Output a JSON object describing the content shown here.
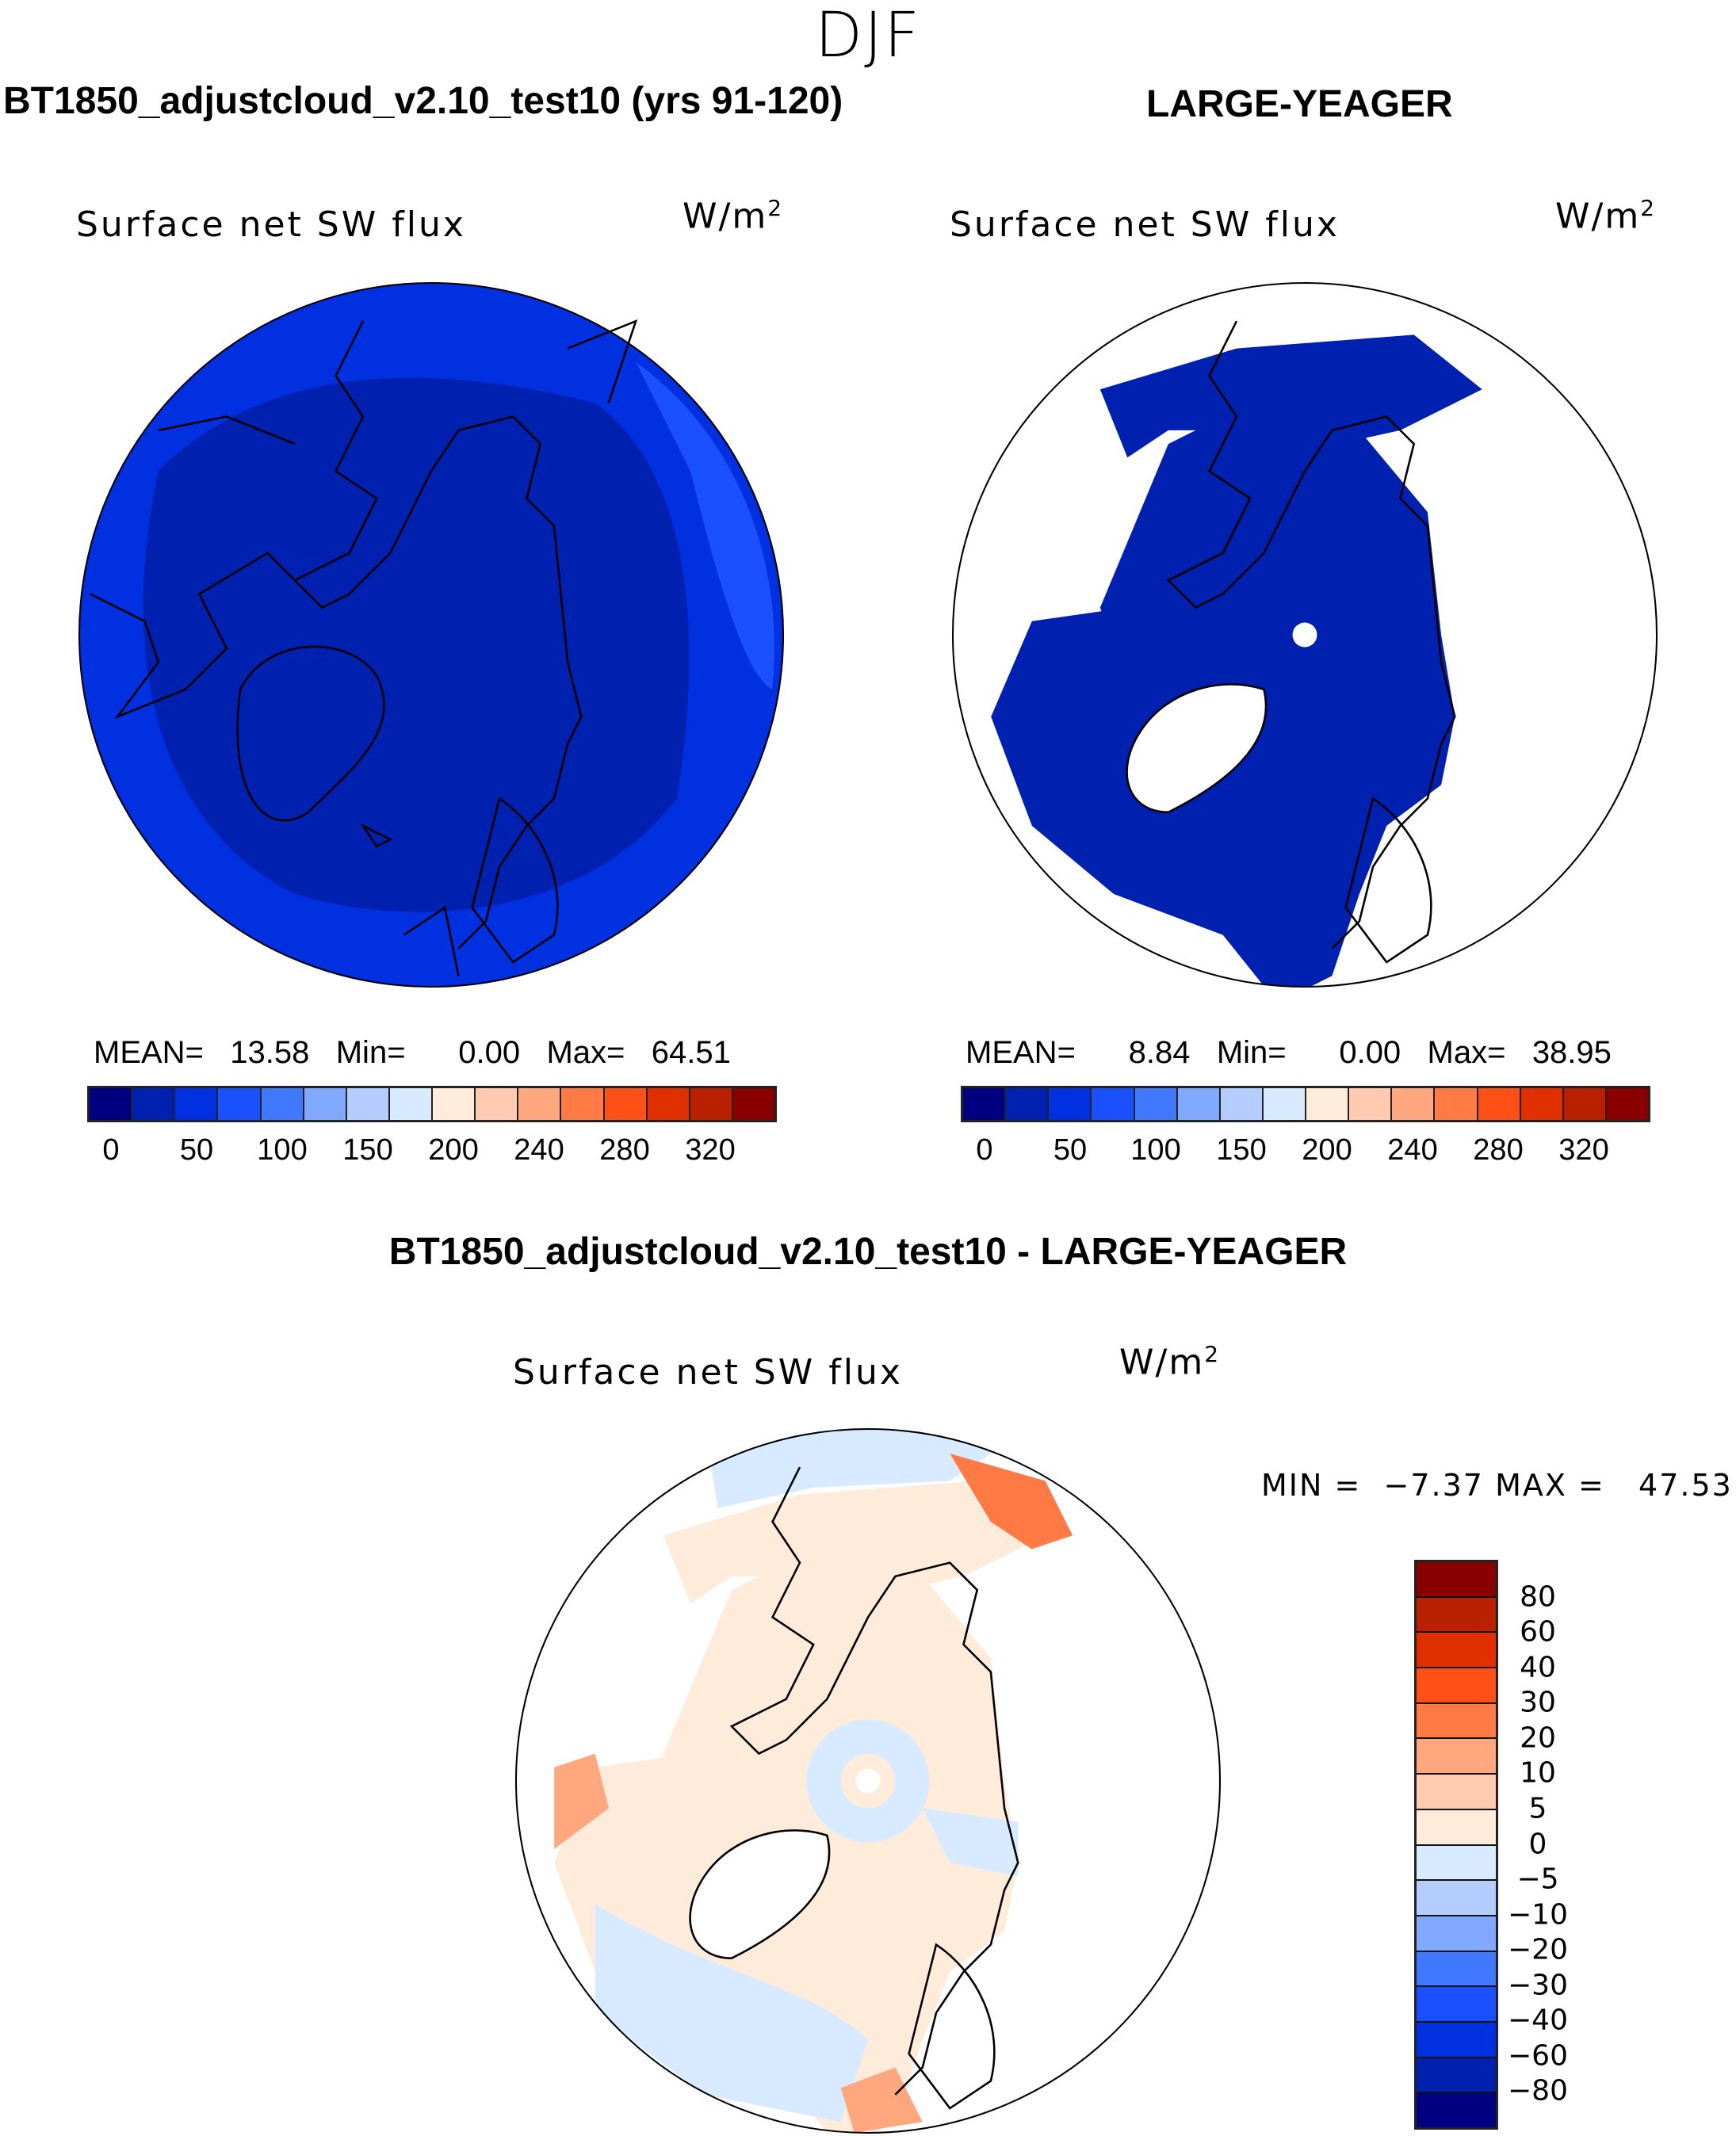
{
  "season": "DJF",
  "panels": [
    {
      "title": "BT1850_adjustcloud_v2.10_test10 (yrs 91-120)",
      "variable": "Surface net SW flux",
      "units": "W/m",
      "units_exp": "2",
      "stats": {
        "mean_label": "MEAN=",
        "mean": "13.58",
        "min_label": "Min=",
        "min": "0.00",
        "max_label": "Max=",
        "max": "64.51"
      }
    },
    {
      "title": "LARGE-YEAGER",
      "variable": "Surface net SW flux",
      "units": "W/m",
      "units_exp": "2",
      "stats": {
        "mean_label": "MEAN=",
        "mean": "8.84",
        "min_label": "Min=",
        "min": "0.00",
        "max_label": "Max=",
        "max": "38.95"
      }
    },
    {
      "title": "BT1850_adjustcloud_v2.10_test10 - LARGE-YEAGER",
      "variable": "Surface net SW flux",
      "units": "W/m",
      "units_exp": "2",
      "stats": {
        "min_label": "MIN  =",
        "min": "−7.37",
        "max_label": "MAX  =",
        "max": "47.53"
      }
    }
  ],
  "chart_data": [
    {
      "type": "heatmap",
      "projection": "north-polar-stereographic",
      "title": "BT1850_adjustcloud_v2.10_test10 (yrs 91-120)",
      "variable": "Surface net SW flux",
      "units": "W/m2",
      "colorbar": {
        "ticks": [
          "0",
          "50",
          "100",
          "150",
          "200",
          "240",
          "280",
          "320"
        ]
      },
      "mean": 13.58,
      "min": 0.0,
      "max": 64.51
    },
    {
      "type": "heatmap",
      "projection": "north-polar-stereographic",
      "title": "LARGE-YEAGER",
      "variable": "Surface net SW flux",
      "units": "W/m2",
      "colorbar": {
        "ticks": [
          "0",
          "50",
          "100",
          "150",
          "200",
          "240",
          "280",
          "320"
        ]
      },
      "mean": 8.84,
      "min": 0.0,
      "max": 38.95
    },
    {
      "type": "heatmap",
      "projection": "north-polar-stereographic",
      "title": "BT1850_adjustcloud_v2.10_test10 - LARGE-YEAGER",
      "variable": "Surface net SW flux",
      "units": "W/m2",
      "colorbar": {
        "ticks": [
          "80",
          "60",
          "40",
          "30",
          "20",
          "10",
          "5",
          "0",
          "−5",
          "−10",
          "−20",
          "−30",
          "−40",
          "−60",
          "−80"
        ]
      },
      "min": -7.37,
      "max": 47.53
    }
  ],
  "colors": [
    "#000080",
    "#0020b0",
    "#0030e0",
    "#1a50ff",
    "#4078ff",
    "#80a8ff",
    "#b4ccff",
    "#d8eaff",
    "#ffebda",
    "#ffcab0",
    "#ffa880",
    "#ff7a45",
    "#ff5018",
    "#e03000",
    "#b82000",
    "#880000"
  ]
}
